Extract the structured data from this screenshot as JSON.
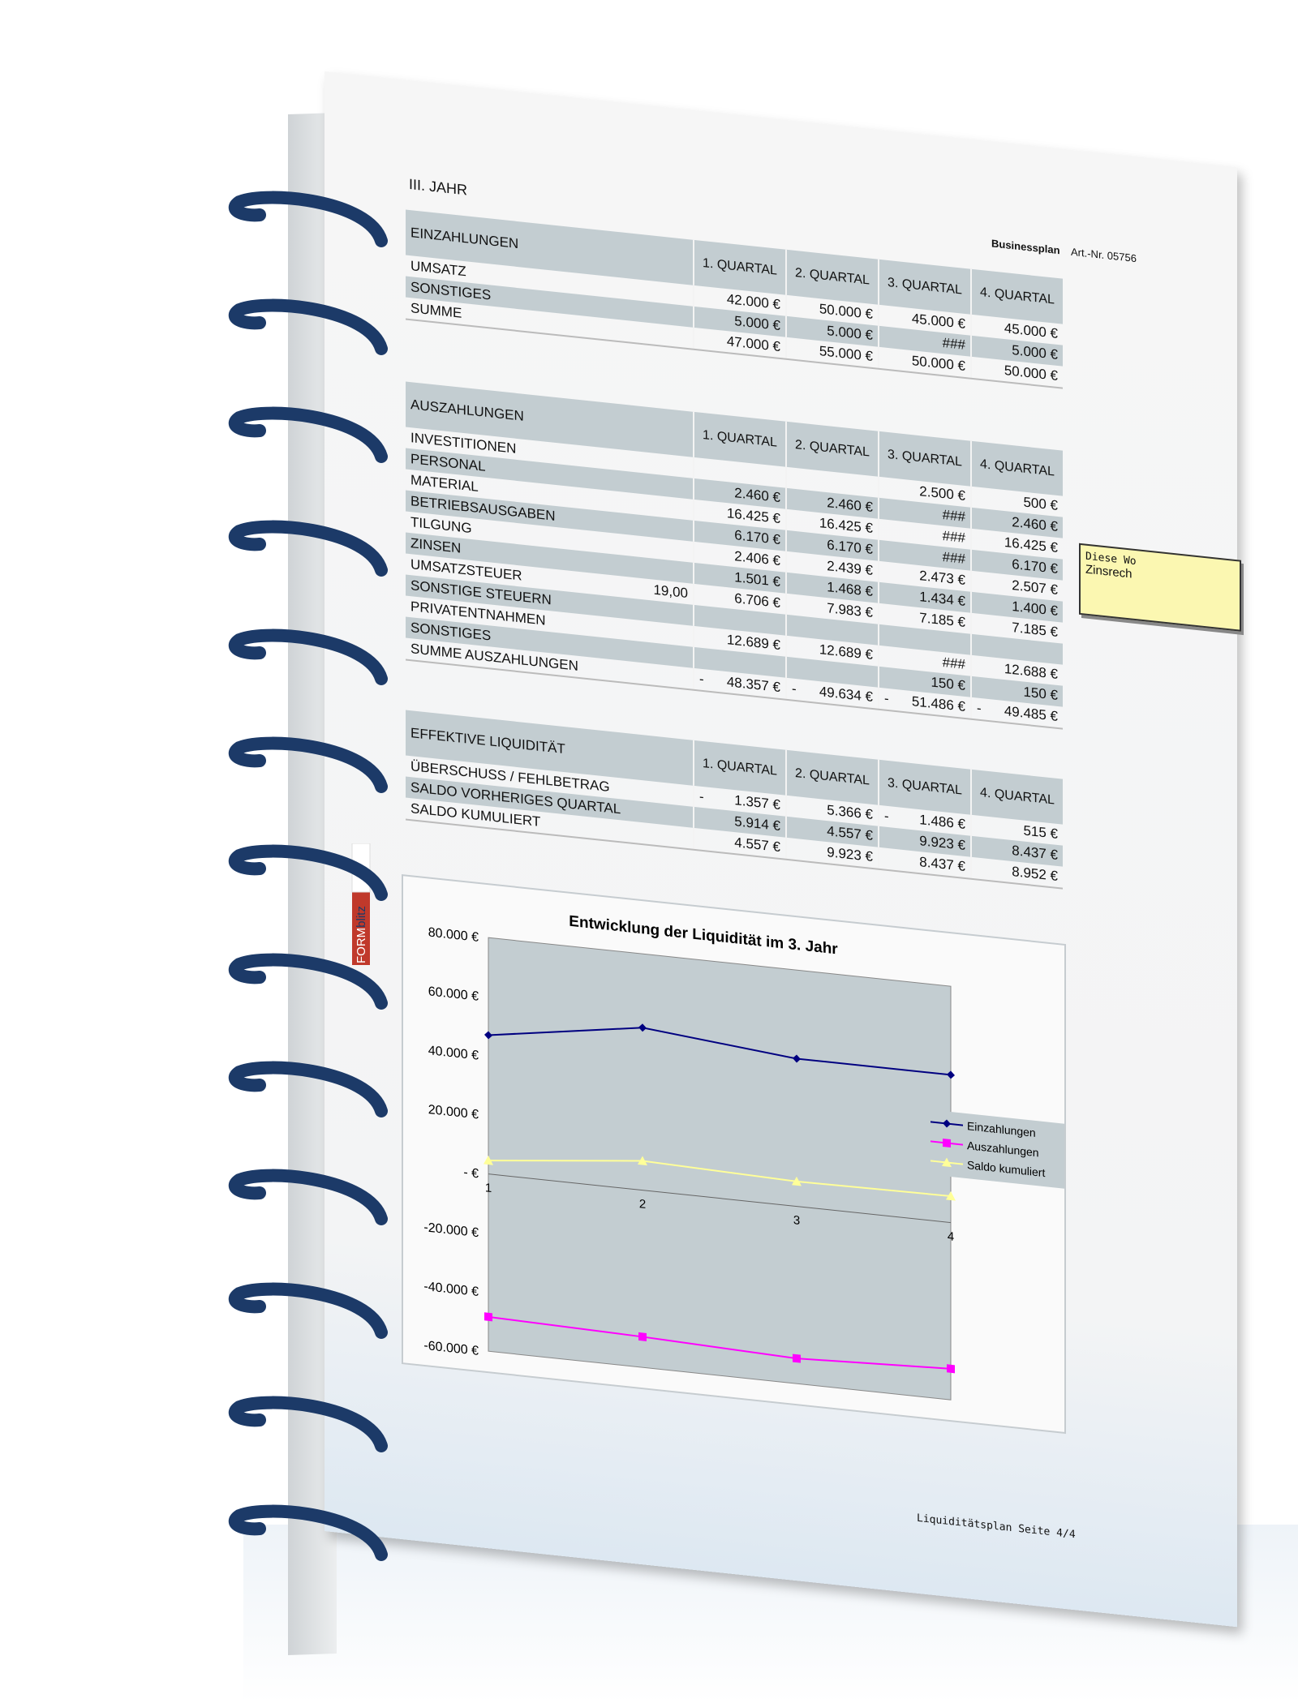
{
  "header": {
    "year_title": "III. JAHR",
    "product": "Businessplan",
    "article_no": "Art.-Nr. 05756"
  },
  "quarters": [
    "1. QUARTAL",
    "2. QUARTAL",
    "3. QUARTAL",
    "4. QUARTAL"
  ],
  "einzahlungen": {
    "title": "EINZAHLUNGEN",
    "rows": [
      {
        "label": "UMSATZ",
        "values": [
          "42.000 €",
          "50.000 €",
          "45.000 €",
          "45.000 €"
        ]
      },
      {
        "label": "SONSTIGES",
        "values": [
          "5.000 €",
          "5.000 €",
          "###",
          "5.000 €"
        ]
      },
      {
        "label": "SUMME",
        "values": [
          "47.000 €",
          "55.000 €",
          "50.000 €",
          "50.000 €"
        ]
      }
    ]
  },
  "auszahlungen": {
    "title": "AUSZAHLUNGEN",
    "rows": [
      {
        "label": "INVESTITIONEN",
        "rate": "",
        "values": [
          "",
          "",
          "2.500 €",
          "500 €"
        ]
      },
      {
        "label": "PERSONAL",
        "rate": "",
        "values": [
          "2.460 €",
          "2.460 €",
          "###",
          "2.460 €"
        ]
      },
      {
        "label": "MATERIAL",
        "rate": "",
        "values": [
          "16.425 €",
          "16.425 €",
          "###",
          "16.425 €"
        ]
      },
      {
        "label": "BETRIEBSAUSGABEN",
        "rate": "",
        "values": [
          "6.170 €",
          "6.170 €",
          "###",
          "6.170 €"
        ]
      },
      {
        "label": "TILGUNG",
        "rate": "",
        "values": [
          "2.406 €",
          "2.439 €",
          "2.473 €",
          "2.507 €"
        ]
      },
      {
        "label": "ZINSEN",
        "rate": "",
        "values": [
          "1.501 €",
          "1.468 €",
          "1.434 €",
          "1.400 €"
        ]
      },
      {
        "label": "UMSATZSTEUER",
        "rate": "19,00",
        "values": [
          "6.706 €",
          "7.983 €",
          "7.185 €",
          "7.185 €"
        ]
      },
      {
        "label": "SONSTIGE STEUERN",
        "rate": "",
        "values": [
          "",
          "",
          "",
          ""
        ]
      },
      {
        "label": "PRIVATENTNAHMEN",
        "rate": "",
        "values": [
          "12.689 €",
          "12.689 €",
          "###",
          "12.688 €"
        ]
      },
      {
        "label": "SONSTIGES",
        "rate": "",
        "values": [
          "",
          "",
          "150 €",
          "150 €"
        ]
      },
      {
        "label": "SUMME AUSZAHLUNGEN",
        "rate": "",
        "values": [
          "48.357 €",
          "49.634 €",
          "51.486 €",
          "49.485 €"
        ],
        "negative": [
          true,
          true,
          true,
          true
        ]
      }
    ]
  },
  "liquiditaet": {
    "title": "EFFEKTIVE LIQUIDITÄT",
    "rows": [
      {
        "label": "ÜBERSCHUSS / FEHLBETRAG",
        "values": [
          "1.357 €",
          "5.366 €",
          "1.486 €",
          "515 €"
        ],
        "negative": [
          true,
          false,
          true,
          false
        ]
      },
      {
        "label": "SALDO VORHERIGES QUARTAL",
        "values": [
          "5.914 €",
          "4.557 €",
          "9.923 €",
          "8.437 €"
        ],
        "negative": [
          false,
          false,
          false,
          false
        ]
      },
      {
        "label": "SALDO KUMULIERT",
        "values": [
          "4.557 €",
          "9.923 €",
          "8.437 €",
          "8.952 €"
        ],
        "negative": [
          false,
          false,
          false,
          false
        ]
      }
    ]
  },
  "chart_data": {
    "type": "line",
    "title": "Entwicklung der Liquidität im 3. Jahr",
    "categories": [
      "1",
      "2",
      "3",
      "4"
    ],
    "ylim": [
      -60000,
      80000
    ],
    "yticks": [
      80000,
      60000,
      40000,
      20000,
      0,
      -20000,
      -40000,
      -60000
    ],
    "ytick_labels": [
      "80.000 €",
      "60.000 €",
      "40.000 €",
      "20.000 €",
      "- €",
      "-20.000 €",
      "-40.000 €",
      "-60.000 €"
    ],
    "legend": "right",
    "plot_background": "#c3cdd1",
    "series": [
      {
        "name": "Einzahlungen",
        "values": [
          47000,
          55000,
          50000,
          50000
        ],
        "color": "#000080",
        "marker": "diamond"
      },
      {
        "name": "Auszahlungen",
        "values": [
          -48357,
          -49634,
          -51486,
          -49485
        ],
        "color": "#ff00ff",
        "marker": "square"
      },
      {
        "name": "Saldo kumuliert",
        "values": [
          4557,
          9923,
          8437,
          8952
        ],
        "color": "#ffff99",
        "marker": "triangle"
      }
    ]
  },
  "note": {
    "line1": "Diese Wo",
    "line2": "Zinsrech"
  },
  "footer": "Liquiditätsplan Seite 4/4",
  "logo": "FORMblitz",
  "colors": {
    "band": "#c3cdd1",
    "spiral": "#1c3a68"
  }
}
